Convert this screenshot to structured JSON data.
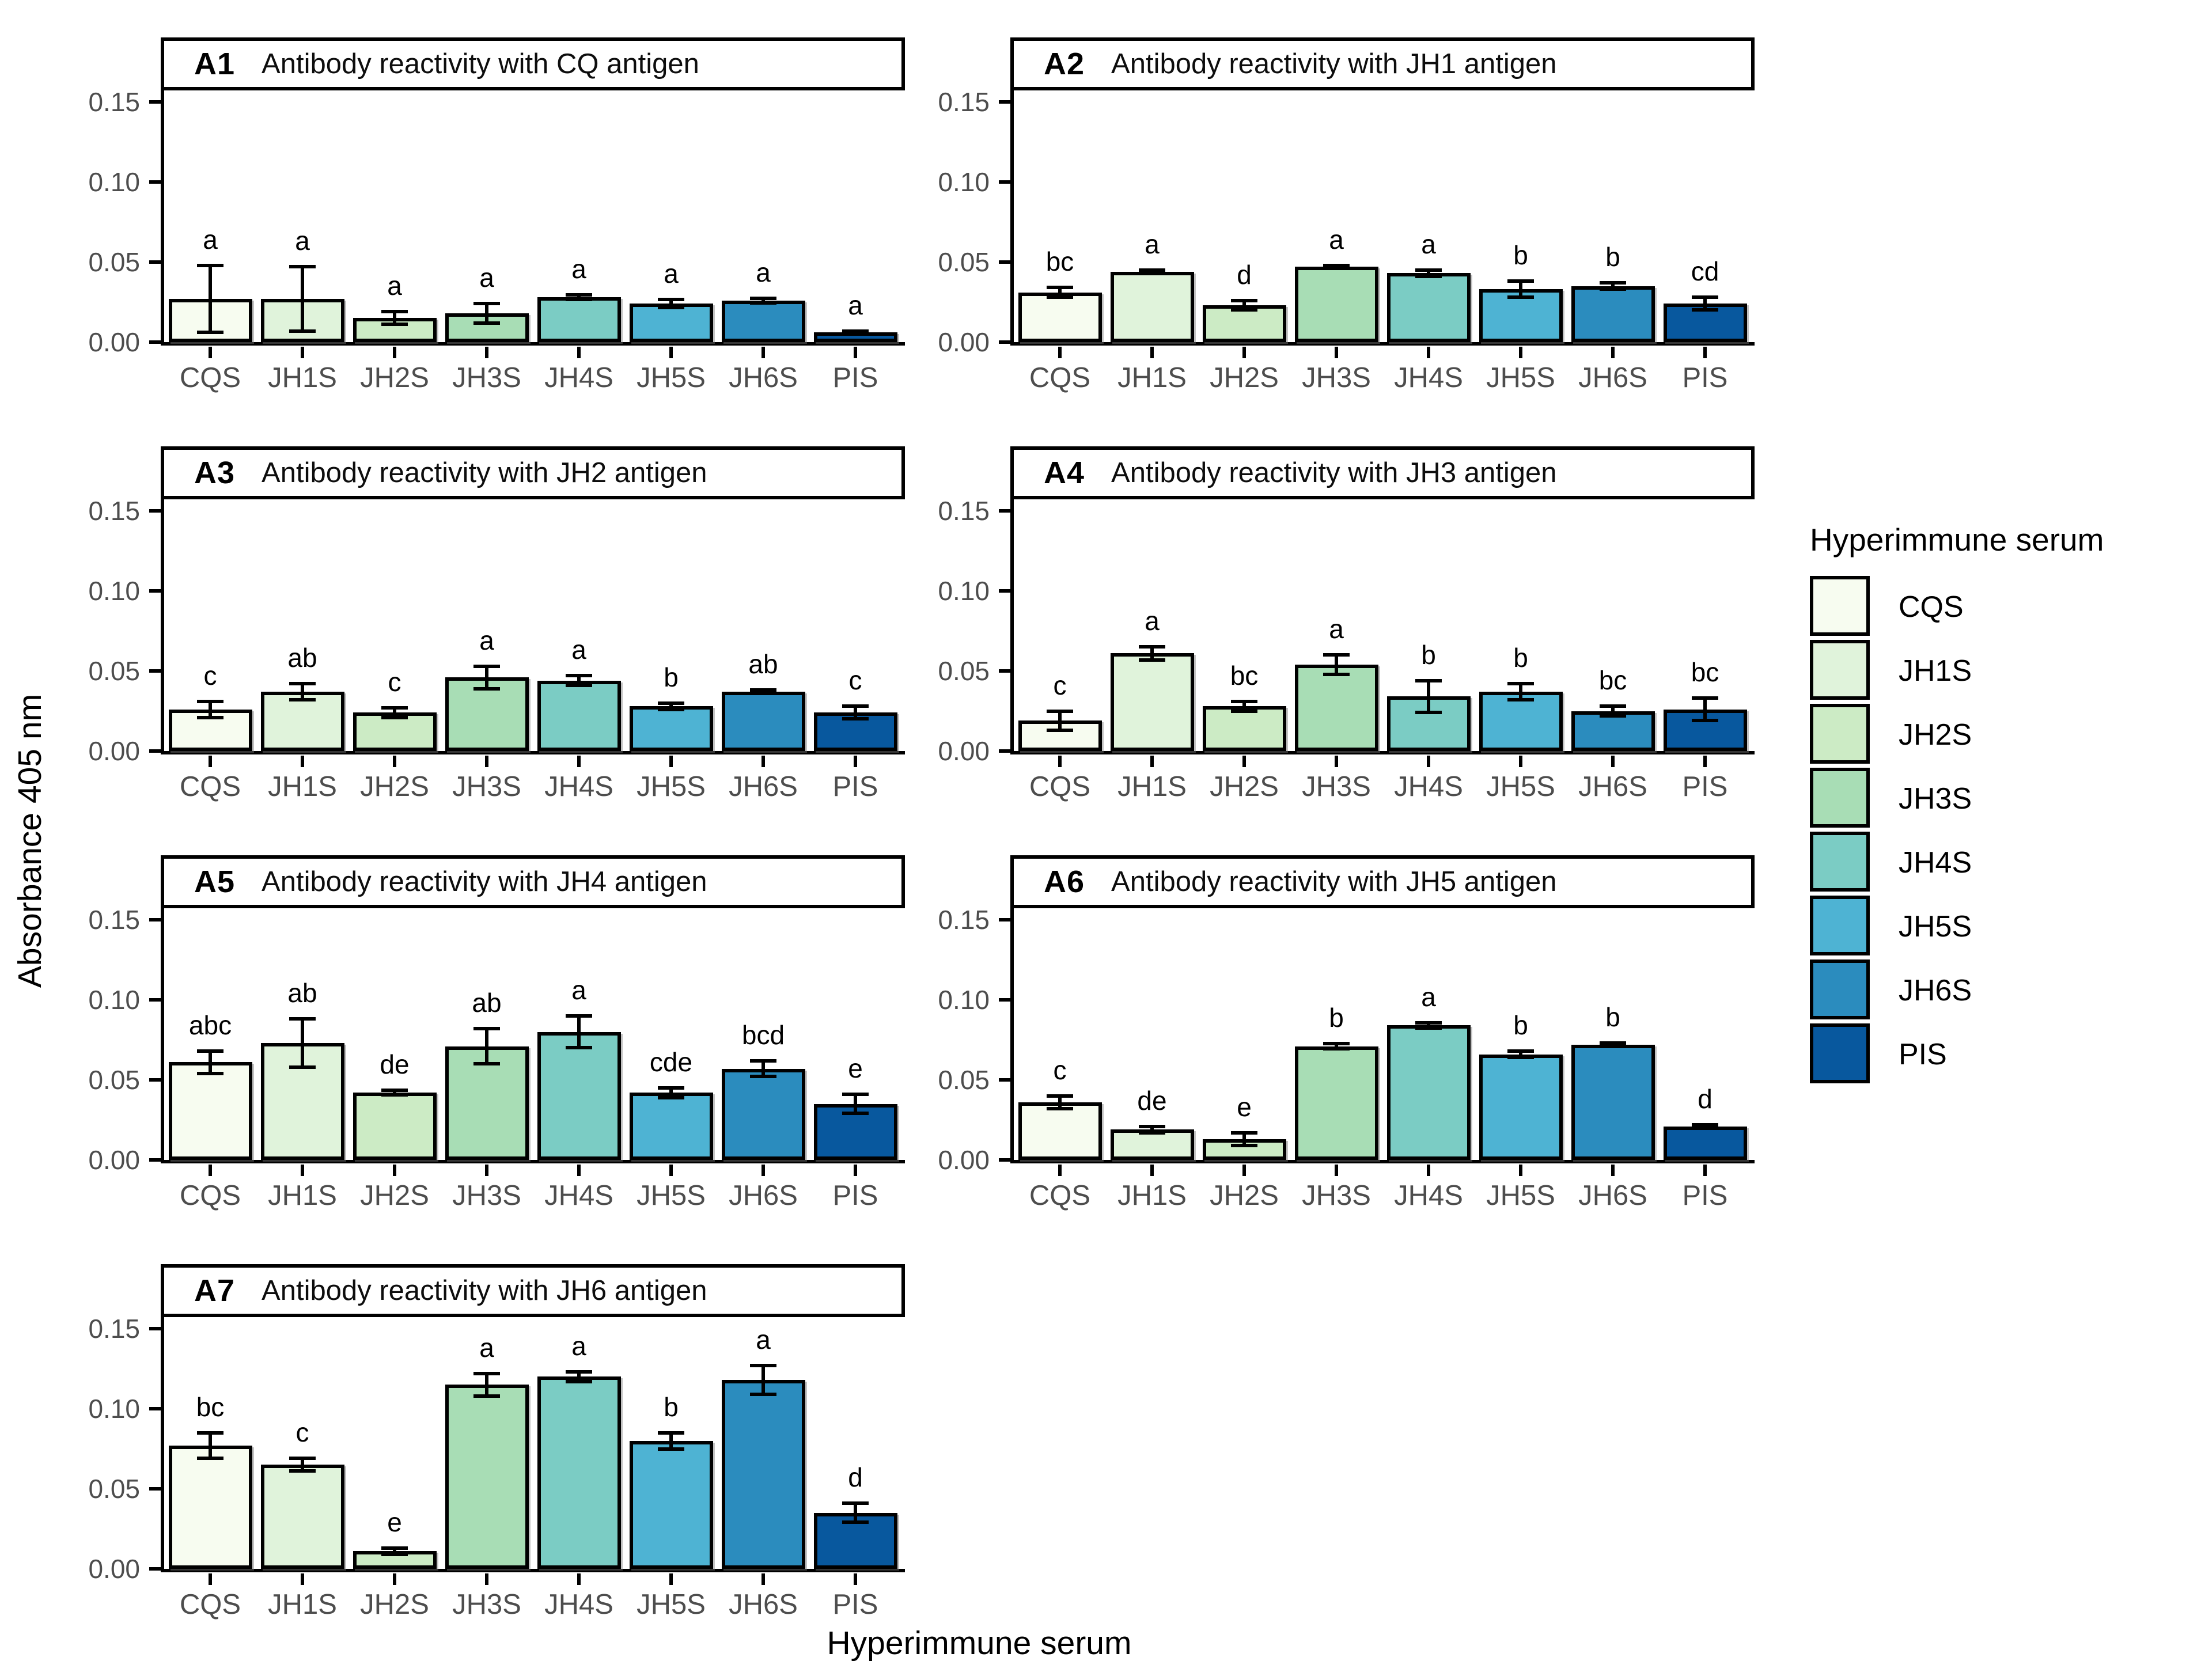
{
  "figure": {
    "y_axis_title": "Absorbance 405 nm",
    "x_axis_title": "Hyperimmune serum",
    "legend_title": "Hyperimmune serum"
  },
  "chart_data": {
    "type": "bar",
    "ylabel": "Absorbance 405 nm",
    "xlabel": "Hyperimmune serum",
    "ylim": [
      0,
      0.157
    ],
    "y_ticks": [
      "0.00",
      "0.05",
      "0.10",
      "0.15"
    ],
    "y_tick_values": [
      0,
      0.05,
      0.1,
      0.15
    ],
    "grid": "off",
    "legend_position": "right",
    "categories": [
      "CQS",
      "JH1S",
      "JH2S",
      "JH3S",
      "JH4S",
      "JH5S",
      "JH6S",
      "PIS"
    ],
    "category_colors": [
      "#f7fcf0",
      "#e0f3db",
      "#ccebc5",
      "#a8ddb5",
      "#7bccc4",
      "#4eb3d3",
      "#2b8cbe",
      "#08589e"
    ],
    "axis_text_color": "#4d4d4d",
    "legend": {
      "title": "Hyperimmune serum",
      "entries": [
        "CQS",
        "JH1S",
        "JH2S",
        "JH3S",
        "JH4S",
        "JH5S",
        "JH6S",
        "PIS"
      ]
    },
    "panels": [
      {
        "tag": "A1",
        "title": "Antibody reactivity with CQ antigen",
        "values": [
          0.027,
          0.027,
          0.015,
          0.018,
          0.028,
          0.024,
          0.026,
          0.006
        ],
        "errors": [
          0.021,
          0.02,
          0.004,
          0.006,
          0.0015,
          0.0025,
          0.0015,
          0.0008
        ],
        "letters": [
          "a",
          "a",
          "a",
          "a",
          "a",
          "a",
          "a",
          "a"
        ]
      },
      {
        "tag": "A2",
        "title": "Antibody reactivity with JH1 antigen",
        "values": [
          0.031,
          0.044,
          0.023,
          0.047,
          0.043,
          0.033,
          0.035,
          0.024
        ],
        "errors": [
          0.003,
          0.001,
          0.003,
          0.001,
          0.002,
          0.005,
          0.002,
          0.004
        ],
        "letters": [
          "bc",
          "a",
          "d",
          "a",
          "a",
          "b",
          "b",
          "cd"
        ]
      },
      {
        "tag": "A3",
        "title": "Antibody reactivity with JH2 antigen",
        "values": [
          0.026,
          0.037,
          0.024,
          0.046,
          0.044,
          0.028,
          0.037,
          0.024
        ],
        "errors": [
          0.005,
          0.005,
          0.003,
          0.007,
          0.003,
          0.002,
          0.001,
          0.004
        ],
        "letters": [
          "c",
          "ab",
          "c",
          "a",
          "a",
          "b",
          "ab",
          "c"
        ]
      },
      {
        "tag": "A4",
        "title": "Antibody reactivity with JH3 antigen",
        "values": [
          0.019,
          0.061,
          0.028,
          0.054,
          0.034,
          0.037,
          0.025,
          0.026
        ],
        "errors": [
          0.006,
          0.004,
          0.003,
          0.006,
          0.01,
          0.005,
          0.003,
          0.007
        ],
        "letters": [
          "c",
          "a",
          "bc",
          "a",
          "b",
          "b",
          "bc",
          "bc"
        ]
      },
      {
        "tag": "A5",
        "title": "Antibody reactivity with JH4 antigen",
        "values": [
          0.061,
          0.073,
          0.042,
          0.071,
          0.08,
          0.042,
          0.057,
          0.035
        ],
        "errors": [
          0.007,
          0.015,
          0.0015,
          0.011,
          0.01,
          0.003,
          0.005,
          0.006
        ],
        "letters": [
          "abc",
          "ab",
          "de",
          "ab",
          "a",
          "cde",
          "bcd",
          "e"
        ]
      },
      {
        "tag": "A6",
        "title": "Antibody reactivity with JH5 antigen",
        "values": [
          0.036,
          0.019,
          0.013,
          0.071,
          0.084,
          0.066,
          0.072,
          0.021
        ],
        "errors": [
          0.004,
          0.002,
          0.004,
          0.0015,
          0.0015,
          0.002,
          0.0012,
          0.001
        ],
        "letters": [
          "c",
          "de",
          "e",
          "b",
          "a",
          "b",
          "b",
          "d"
        ]
      },
      {
        "tag": "A7",
        "title": "Antibody reactivity with JH6 antigen",
        "values": [
          0.077,
          0.065,
          0.011,
          0.115,
          0.12,
          0.08,
          0.118,
          0.035
        ],
        "errors": [
          0.008,
          0.004,
          0.002,
          0.007,
          0.003,
          0.005,
          0.009,
          0.006
        ],
        "letters": [
          "bc",
          "c",
          "e",
          "a",
          "a",
          "b",
          "a",
          "d"
        ]
      }
    ]
  }
}
